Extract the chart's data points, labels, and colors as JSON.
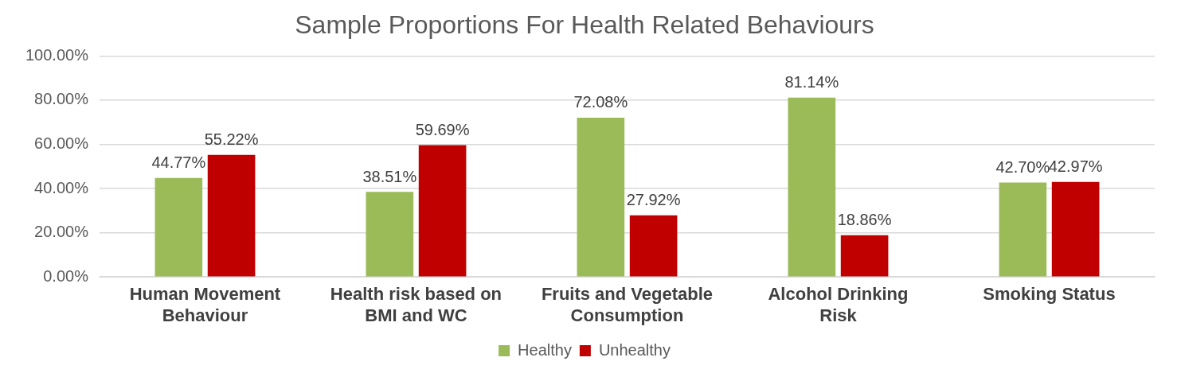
{
  "chart_data": {
    "type": "bar",
    "title": "Sample Proportions For Health Related Behaviours",
    "categories": [
      "Human Movement Behaviour",
      "Health risk based on BMI and WC",
      "Fruits and Vegetable Consumption",
      "Alcohol Drinking Risk",
      "Smoking Status"
    ],
    "series": [
      {
        "name": "Healthy",
        "color": "#9bbb59",
        "values": [
          44.77,
          38.51,
          72.08,
          81.14,
          42.7
        ],
        "value_labels": [
          "44.77%",
          "38.51%",
          "72.08%",
          "81.14%",
          "42.70%"
        ]
      },
      {
        "name": "Unhealthy",
        "color": "#c00000",
        "values": [
          55.22,
          59.69,
          27.92,
          18.86,
          42.97
        ],
        "value_labels": [
          "55.22%",
          "59.69%",
          "27.92%",
          "18.86%",
          "42.97%"
        ]
      }
    ],
    "ylim": [
      0,
      100
    ],
    "yticks": [
      {
        "value": 0,
        "label": "0.00%"
      },
      {
        "value": 20,
        "label": "20.00%"
      },
      {
        "value": 40,
        "label": "40.00%"
      },
      {
        "value": 60,
        "label": "60.00%"
      },
      {
        "value": 80,
        "label": "80.00%"
      },
      {
        "value": 100,
        "label": "100.00%"
      }
    ],
    "grid": "y",
    "legend": "bottom"
  }
}
